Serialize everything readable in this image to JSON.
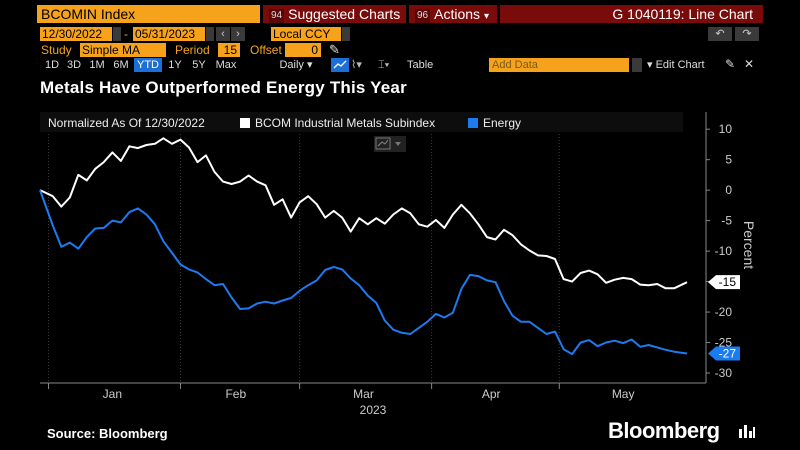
{
  "toolbar": {
    "ticker": "BCOMIN Index",
    "suggested_badge": "94",
    "suggested": "Suggested Charts",
    "actions_badge": "96",
    "actions": "Actions",
    "actions_caret": "▾",
    "function_label": "G 1040119: Line Chart"
  },
  "range": {
    "start": "12/30/2022",
    "end": "05/31/2023",
    "currency": "Local CCY"
  },
  "study": {
    "label": "Study",
    "value": "Simple MA",
    "period_label": "Period",
    "period_value": "15",
    "offset_label": "Offset",
    "offset_value": "0"
  },
  "periods": [
    "1D",
    "3D",
    "1M",
    "6M",
    "YTD",
    "1Y",
    "5Y",
    "Max"
  ],
  "active_period": "YTD",
  "frequency": "Daily",
  "frequency_caret": "▾",
  "table_label": "Table",
  "add_data_placeholder": "Add Data",
  "edit_chart_label": "Edit Chart",
  "page_title": "Metals Have Outperformed Energy This Year",
  "footer": {
    "source": "Source: Bloomberg",
    "brand": "Bloomberg"
  },
  "icons": [
    "undo-icon",
    "redo-icon",
    "pencil-icon",
    "chart-type-icon",
    "settings-icon",
    "close-icon",
    "bloomberg-terminal-icon"
  ],
  "colors": {
    "accent_orange": "#f7a21b",
    "header_red": "#7a0b0b",
    "metals_series": "#ffffff",
    "energy_series": "#1d7bf0",
    "background": "#000000"
  },
  "chart_data": {
    "type": "line",
    "title": "Metals Have Outperformed Energy This Year",
    "subtitle": "Normalized As Of 12/30/2022",
    "xlabel": "2023",
    "ylabel": "Percent",
    "ylim": [
      -30,
      12
    ],
    "yticks": [
      10,
      5,
      0,
      -5,
      -10,
      -15,
      -20,
      -25,
      -30
    ],
    "x_range": [
      "2022-12-30",
      "2023-05-31"
    ],
    "x_tick_labels": [
      {
        "label": "Jan",
        "date": "2023-01-16"
      },
      {
        "label": "Feb",
        "date": "2023-02-14"
      },
      {
        "label": "Mar",
        "date": "2023-03-16"
      },
      {
        "label": "Apr",
        "date": "2023-04-15"
      },
      {
        "label": "May",
        "date": "2023-05-16"
      }
    ],
    "x_tick_dates": [
      "2023-01-01",
      "2023-02-01",
      "2023-03-01",
      "2023-04-01",
      "2023-05-01"
    ],
    "legend_position": "top-left",
    "series": [
      {
        "name": "BCOM Industrial Metals Subindex",
        "color": "#ffffff",
        "last_value_label": "-15",
        "points": [
          [
            "2022-12-30",
            0.0
          ],
          [
            "2023-01-02",
            -1.0
          ],
          [
            "2023-01-04",
            -2.7
          ],
          [
            "2023-01-06",
            -1.2
          ],
          [
            "2023-01-08",
            2.5
          ],
          [
            "2023-01-10",
            1.6
          ],
          [
            "2023-01-12",
            3.5
          ],
          [
            "2023-01-14",
            4.6
          ],
          [
            "2023-01-16",
            6.2
          ],
          [
            "2023-01-18",
            4.8
          ],
          [
            "2023-01-20",
            7.2
          ],
          [
            "2023-01-22",
            6.9
          ],
          [
            "2023-01-24",
            7.4
          ],
          [
            "2023-01-26",
            7.6
          ],
          [
            "2023-01-28",
            8.5
          ],
          [
            "2023-01-30",
            7.6
          ],
          [
            "2023-02-01",
            8.3
          ],
          [
            "2023-02-03",
            7.0
          ],
          [
            "2023-02-05",
            4.6
          ],
          [
            "2023-02-07",
            5.7
          ],
          [
            "2023-02-09",
            3.0
          ],
          [
            "2023-02-11",
            1.4
          ],
          [
            "2023-02-13",
            1.0
          ],
          [
            "2023-02-15",
            1.4
          ],
          [
            "2023-02-17",
            2.4
          ],
          [
            "2023-02-19",
            1.4
          ],
          [
            "2023-02-21",
            0.8
          ],
          [
            "2023-02-23",
            -2.4
          ],
          [
            "2023-02-25",
            -1.5
          ],
          [
            "2023-02-27",
            -4.5
          ],
          [
            "2023-03-01",
            -2.0
          ],
          [
            "2023-03-03",
            -1.0
          ],
          [
            "2023-03-05",
            -2.3
          ],
          [
            "2023-03-07",
            -4.5
          ],
          [
            "2023-03-09",
            -3.4
          ],
          [
            "2023-03-11",
            -4.5
          ],
          [
            "2023-03-13",
            -6.8
          ],
          [
            "2023-03-15",
            -4.6
          ],
          [
            "2023-03-17",
            -5.6
          ],
          [
            "2023-03-19",
            -4.6
          ],
          [
            "2023-03-21",
            -5.5
          ],
          [
            "2023-03-23",
            -4.0
          ],
          [
            "2023-03-25",
            -3.0
          ],
          [
            "2023-03-27",
            -3.8
          ],
          [
            "2023-03-29",
            -5.6
          ],
          [
            "2023-03-31",
            -6.0
          ],
          [
            "2023-04-02",
            -4.9
          ],
          [
            "2023-04-04",
            -6.2
          ],
          [
            "2023-04-06",
            -4.0
          ],
          [
            "2023-04-08",
            -2.4
          ],
          [
            "2023-04-10",
            -3.8
          ],
          [
            "2023-04-12",
            -5.6
          ],
          [
            "2023-04-14",
            -7.7
          ],
          [
            "2023-04-16",
            -8.1
          ],
          [
            "2023-04-18",
            -6.5
          ],
          [
            "2023-04-20",
            -7.4
          ],
          [
            "2023-04-22",
            -8.9
          ],
          [
            "2023-04-24",
            -9.9
          ],
          [
            "2023-04-26",
            -10.7
          ],
          [
            "2023-04-28",
            -10.8
          ],
          [
            "2023-04-30",
            -11.3
          ],
          [
            "2023-05-02",
            -14.6
          ],
          [
            "2023-05-04",
            -15.0
          ],
          [
            "2023-05-06",
            -13.6
          ],
          [
            "2023-05-08",
            -13.2
          ],
          [
            "2023-05-10",
            -13.8
          ],
          [
            "2023-05-12",
            -15.2
          ],
          [
            "2023-05-14",
            -14.7
          ],
          [
            "2023-05-16",
            -14.4
          ],
          [
            "2023-05-18",
            -14.6
          ],
          [
            "2023-05-20",
            -15.5
          ],
          [
            "2023-05-22",
            -15.6
          ],
          [
            "2023-05-24",
            -15.4
          ],
          [
            "2023-05-26",
            -16.1
          ],
          [
            "2023-05-28",
            -16.1
          ],
          [
            "2023-05-31",
            -15.1
          ]
        ]
      },
      {
        "name": "Energy",
        "color": "#1d7bf0",
        "last_value_label": "-27",
        "points": [
          [
            "2022-12-30",
            0.0
          ],
          [
            "2023-01-02",
            -5.8
          ],
          [
            "2023-01-04",
            -9.3
          ],
          [
            "2023-01-06",
            -8.6
          ],
          [
            "2023-01-08",
            -9.6
          ],
          [
            "2023-01-10",
            -7.7
          ],
          [
            "2023-01-12",
            -6.3
          ],
          [
            "2023-01-14",
            -6.2
          ],
          [
            "2023-01-16",
            -5.0
          ],
          [
            "2023-01-18",
            -5.3
          ],
          [
            "2023-01-20",
            -3.6
          ],
          [
            "2023-01-22",
            -3.0
          ],
          [
            "2023-01-24",
            -4.0
          ],
          [
            "2023-01-26",
            -5.6
          ],
          [
            "2023-01-28",
            -8.4
          ],
          [
            "2023-01-30",
            -10.3
          ],
          [
            "2023-02-01",
            -12.2
          ],
          [
            "2023-02-03",
            -13.0
          ],
          [
            "2023-02-05",
            -13.5
          ],
          [
            "2023-02-07",
            -14.6
          ],
          [
            "2023-02-09",
            -15.6
          ],
          [
            "2023-02-11",
            -15.4
          ],
          [
            "2023-02-13",
            -17.6
          ],
          [
            "2023-02-15",
            -19.5
          ],
          [
            "2023-02-17",
            -19.4
          ],
          [
            "2023-02-19",
            -18.6
          ],
          [
            "2023-02-21",
            -18.3
          ],
          [
            "2023-02-23",
            -18.6
          ],
          [
            "2023-02-25",
            -18.1
          ],
          [
            "2023-02-27",
            -17.7
          ],
          [
            "2023-03-01",
            -16.5
          ],
          [
            "2023-03-03",
            -15.6
          ],
          [
            "2023-03-05",
            -14.8
          ],
          [
            "2023-03-07",
            -13.1
          ],
          [
            "2023-03-09",
            -12.6
          ],
          [
            "2023-03-11",
            -13.0
          ],
          [
            "2023-03-13",
            -14.5
          ],
          [
            "2023-03-15",
            -15.6
          ],
          [
            "2023-03-17",
            -17.3
          ],
          [
            "2023-03-19",
            -18.5
          ],
          [
            "2023-03-21",
            -21.4
          ],
          [
            "2023-03-23",
            -22.9
          ],
          [
            "2023-03-25",
            -23.4
          ],
          [
            "2023-03-27",
            -23.6
          ],
          [
            "2023-03-29",
            -22.6
          ],
          [
            "2023-03-31",
            -21.6
          ],
          [
            "2023-04-02",
            -20.3
          ],
          [
            "2023-04-04",
            -20.9
          ],
          [
            "2023-04-06",
            -20.1
          ],
          [
            "2023-04-08",
            -16.2
          ],
          [
            "2023-04-10",
            -13.9
          ],
          [
            "2023-04-12",
            -14.1
          ],
          [
            "2023-04-14",
            -14.8
          ],
          [
            "2023-04-16",
            -15.1
          ],
          [
            "2023-04-18",
            -18.2
          ],
          [
            "2023-04-20",
            -20.6
          ],
          [
            "2023-04-22",
            -21.6
          ],
          [
            "2023-04-24",
            -21.6
          ],
          [
            "2023-04-26",
            -22.6
          ],
          [
            "2023-04-28",
            -23.6
          ],
          [
            "2023-04-30",
            -23.2
          ],
          [
            "2023-05-02",
            -26.1
          ],
          [
            "2023-05-04",
            -26.9
          ],
          [
            "2023-05-06",
            -25.0
          ],
          [
            "2023-05-08",
            -24.6
          ],
          [
            "2023-05-10",
            -25.6
          ],
          [
            "2023-05-12",
            -25.0
          ],
          [
            "2023-05-14",
            -24.7
          ],
          [
            "2023-05-16",
            -25.1
          ],
          [
            "2023-05-18",
            -24.5
          ],
          [
            "2023-05-20",
            -25.7
          ],
          [
            "2023-05-22",
            -25.4
          ],
          [
            "2023-05-24",
            -25.8
          ],
          [
            "2023-05-26",
            -26.2
          ],
          [
            "2023-05-28",
            -26.5
          ],
          [
            "2023-05-31",
            -26.8
          ]
        ]
      }
    ]
  }
}
